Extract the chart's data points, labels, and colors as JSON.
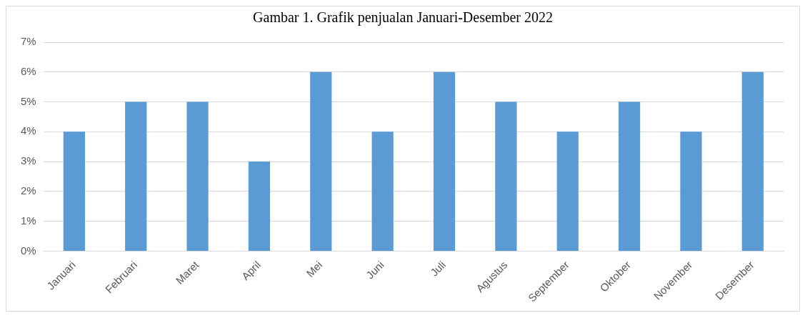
{
  "chart_data": {
    "type": "bar",
    "title": "Gambar 1. Grafik penjualan Januari-Desember 2022",
    "categories": [
      "Januari",
      "Februari",
      "Maret",
      "April",
      "Mei",
      "Juni",
      "Juli",
      "Agustus",
      "September",
      "Oktober",
      "November",
      "Desember"
    ],
    "values": [
      4,
      5,
      5,
      3,
      6,
      4,
      6,
      5,
      4,
      5,
      4,
      6
    ],
    "color": "#5b9bd5",
    "ylim": [
      0,
      7
    ],
    "yticks": [
      {
        "value": 0,
        "label": "0%"
      },
      {
        "value": 1,
        "label": "1%"
      },
      {
        "value": 2,
        "label": "2%"
      },
      {
        "value": 3,
        "label": "3%"
      },
      {
        "value": 4,
        "label": "4%"
      },
      {
        "value": 5,
        "label": "5%"
      },
      {
        "value": 6,
        "label": "6%"
      },
      {
        "value": 7,
        "label": "7%"
      }
    ],
    "grid": "y",
    "legend": false
  }
}
